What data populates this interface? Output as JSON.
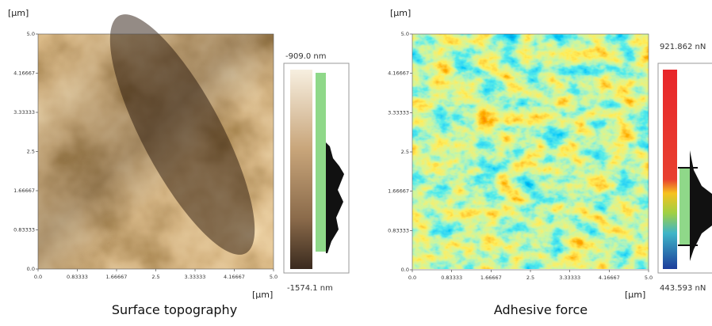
{
  "panels": [
    {
      "y_unit": "[µm]",
      "x_unit": "[µm]",
      "yticks": [
        "5.0",
        "4.16667",
        "3.33333",
        "2.5",
        "1.66667",
        "0.83333",
        "0.0"
      ],
      "xticks": [
        "0.0",
        "0.83333",
        "1.66667",
        "2.5",
        "3.33333",
        "4.16667",
        "5.0"
      ],
      "scale_max": "-909.0 nm",
      "scale_min": "-1574.1 nm",
      "caption": "Surface topography"
    },
    {
      "y_unit": "[µm]",
      "x_unit": "[µm]",
      "yticks": [
        "5.0",
        "4.16667",
        "3.33333",
        "2.5",
        "1.66667",
        "0.83333",
        "0.0"
      ],
      "xticks": [
        "0.0",
        "0.83333",
        "1.66667",
        "2.5",
        "3.33333",
        "4.16667",
        "5.0"
      ],
      "scale_max": "921.862 nN",
      "scale_min": "443.593 nN",
      "caption": "Adhesive force"
    }
  ]
}
